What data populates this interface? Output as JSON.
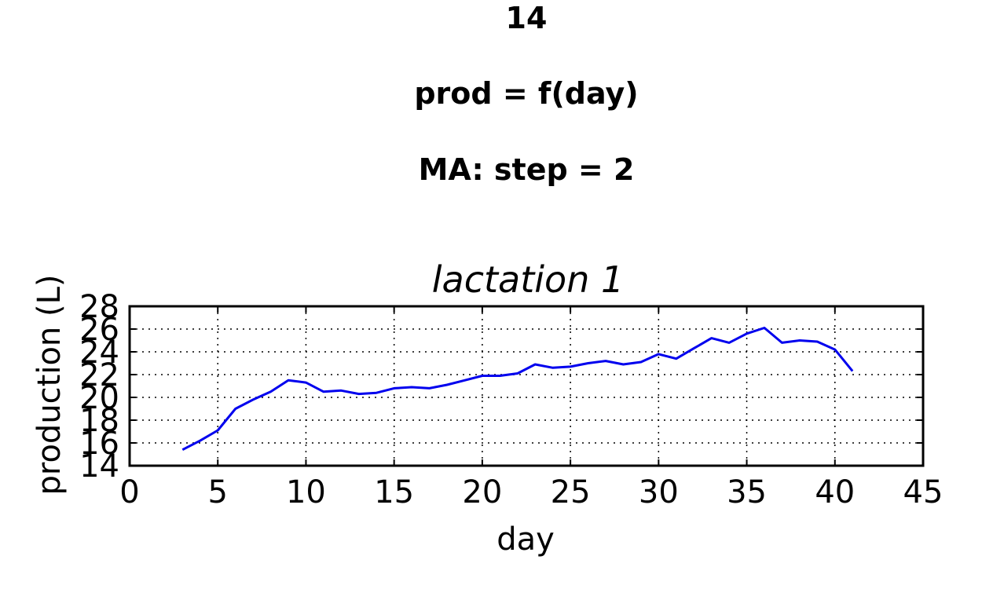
{
  "figure": {
    "titles": [
      "14",
      "prod = f(day)",
      "MA: step = 2"
    ]
  },
  "chart_data": {
    "type": "line",
    "title": "lactation 1",
    "xlabel": "day",
    "ylabel": "production (L)",
    "xlim": [
      0,
      45
    ],
    "ylim": [
      14,
      28
    ],
    "xticks": [
      0,
      5,
      10,
      15,
      20,
      25,
      30,
      35,
      40,
      45
    ],
    "yticks": [
      14,
      16,
      18,
      20,
      22,
      24,
      26,
      28
    ],
    "grid": true,
    "series": [
      {
        "color": "#0000ee",
        "x": [
          3,
          4,
          5,
          6,
          7,
          8,
          9,
          10,
          11,
          12,
          13,
          14,
          15,
          16,
          17,
          18,
          19,
          20,
          21,
          22,
          23,
          24,
          25,
          26,
          27,
          28,
          29,
          30,
          31,
          32,
          33,
          34,
          35,
          36,
          37,
          38,
          39,
          40,
          41
        ],
        "y": [
          15.4,
          16.2,
          17.1,
          19.0,
          19.8,
          20.5,
          21.5,
          21.3,
          20.5,
          20.6,
          20.3,
          20.4,
          20.8,
          20.9,
          20.8,
          21.1,
          21.5,
          21.9,
          21.9,
          22.1,
          22.9,
          22.6,
          22.7,
          23.0,
          23.2,
          22.9,
          23.1,
          23.8,
          23.4,
          24.3,
          25.2,
          24.8,
          25.6,
          26.1,
          24.8,
          25.0,
          24.9,
          24.2,
          22.3
        ]
      }
    ]
  }
}
